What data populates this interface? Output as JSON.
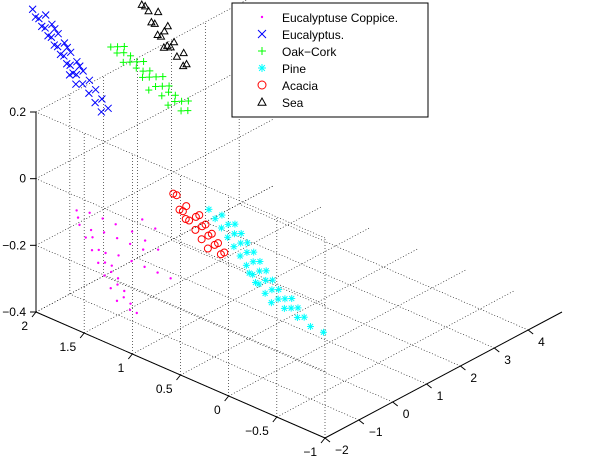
{
  "chart_data": {
    "type": "scatter3d",
    "title": "",
    "xlabel": "",
    "ylabel": "",
    "zlabel": "",
    "xlim": [
      -2,
      5
    ],
    "ylim": [
      -1,
      2
    ],
    "zlim": [
      -0.4,
      0.2
    ],
    "x_ticks": [
      "−2",
      "−1",
      "0",
      "1",
      "2",
      "3",
      "4"
    ],
    "y_ticks": [
      "−1",
      "−0.5",
      "0",
      "0.5",
      "1",
      "1.5",
      "2"
    ],
    "z_ticks": [
      "−0.4",
      "−0.2",
      "0",
      "0.2"
    ],
    "grid": true,
    "legend_position": "top-center",
    "series": [
      {
        "name": "Eucalyptuse Coppice.",
        "marker": "dot",
        "color": "#ff00ff",
        "points": [
          [
            -1.6,
            1.3,
            -0.3
          ],
          [
            -1.5,
            1.4,
            -0.28
          ],
          [
            -1.4,
            1.5,
            -0.26
          ],
          [
            -1.3,
            1.6,
            -0.24
          ],
          [
            -1.2,
            1.7,
            -0.22
          ],
          [
            -1.1,
            1.8,
            -0.2
          ],
          [
            -1.0,
            1.9,
            -0.18
          ],
          [
            -0.9,
            1.95,
            -0.17
          ],
          [
            -0.8,
            2.0,
            -0.16
          ],
          [
            -0.7,
            1.9,
            -0.16
          ],
          [
            -0.6,
            1.8,
            -0.17
          ],
          [
            -0.5,
            1.7,
            -0.18
          ],
          [
            -1.5,
            1.2,
            -0.32
          ],
          [
            -1.4,
            1.3,
            -0.3
          ],
          [
            -1.3,
            1.4,
            -0.28
          ],
          [
            -1.2,
            1.5,
            -0.26
          ],
          [
            -1.1,
            1.6,
            -0.25
          ],
          [
            -1.0,
            1.7,
            -0.23
          ],
          [
            -0.9,
            1.8,
            -0.21
          ],
          [
            -0.8,
            1.85,
            -0.2
          ],
          [
            -0.7,
            1.75,
            -0.2
          ],
          [
            -0.6,
            1.65,
            -0.21
          ],
          [
            -0.5,
            1.55,
            -0.22
          ],
          [
            -0.4,
            1.45,
            -0.23
          ],
          [
            -1.3,
            1.2,
            -0.34
          ],
          [
            -1.2,
            1.3,
            -0.33
          ],
          [
            -1.1,
            1.4,
            -0.31
          ],
          [
            -1.0,
            1.5,
            -0.29
          ],
          [
            -0.9,
            1.6,
            -0.27
          ],
          [
            -0.8,
            1.7,
            -0.25
          ],
          [
            -0.7,
            1.6,
            -0.25
          ],
          [
            -0.6,
            1.5,
            -0.26
          ],
          [
            -0.5,
            1.4,
            -0.27
          ],
          [
            -0.4,
            1.3,
            -0.28
          ],
          [
            -0.3,
            1.2,
            -0.29
          ],
          [
            -0.3,
            1.6,
            -0.2
          ],
          [
            -0.2,
            1.5,
            -0.22
          ],
          [
            -0.1,
            1.4,
            -0.24
          ],
          [
            0.0,
            1.6,
            -0.18
          ],
          [
            0.1,
            1.5,
            -0.2
          ]
        ]
      },
      {
        "name": "Eucalyptus.",
        "marker": "x",
        "color": "#0000ff",
        "points": [
          [
            0.6,
            2.3,
            0.05
          ],
          [
            0.7,
            2.4,
            0.06
          ],
          [
            0.8,
            2.5,
            0.07
          ],
          [
            0.9,
            2.6,
            0.08
          ],
          [
            1.0,
            2.7,
            0.09
          ],
          [
            1.1,
            2.8,
            0.1
          ],
          [
            1.2,
            2.9,
            0.11
          ],
          [
            1.3,
            3.0,
            0.12
          ],
          [
            1.4,
            3.1,
            0.13
          ],
          [
            1.5,
            3.2,
            0.14
          ],
          [
            0.7,
            2.2,
            0.04
          ],
          [
            0.8,
            2.3,
            0.05
          ],
          [
            0.9,
            2.4,
            0.06
          ],
          [
            1.0,
            2.5,
            0.07
          ],
          [
            1.1,
            2.6,
            0.08
          ],
          [
            1.2,
            2.7,
            0.09
          ],
          [
            1.3,
            2.8,
            0.1
          ],
          [
            1.4,
            2.9,
            0.11
          ],
          [
            1.5,
            3.0,
            0.12
          ],
          [
            1.6,
            3.1,
            0.13
          ],
          [
            0.8,
            2.6,
            0.09
          ],
          [
            0.9,
            2.7,
            0.1
          ],
          [
            1.0,
            2.8,
            0.11
          ],
          [
            1.1,
            2.9,
            0.12
          ],
          [
            1.2,
            3.0,
            0.13
          ],
          [
            1.3,
            3.1,
            0.14
          ],
          [
            1.4,
            3.2,
            0.15
          ],
          [
            0.6,
            2.5,
            0.08
          ],
          [
            0.7,
            2.6,
            0.09
          ],
          [
            1.7,
            3.2,
            0.14
          ],
          [
            1.6,
            3.3,
            0.15
          ],
          [
            0.5,
            2.2,
            0.04
          ],
          [
            1.0,
            2.6,
            0.1
          ],
          [
            1.2,
            2.8,
            0.12
          ],
          [
            1.4,
            3.0,
            0.14
          ]
        ]
      },
      {
        "name": "Oak−Cork",
        "marker": "plus",
        "color": "#00ff00",
        "points": [
          [
            2.0,
            1.9,
            0.0
          ],
          [
            2.1,
            2.0,
            0.01
          ],
          [
            2.2,
            2.1,
            0.02
          ],
          [
            2.3,
            2.2,
            0.02
          ],
          [
            2.4,
            2.3,
            0.03
          ],
          [
            2.5,
            2.4,
            0.03
          ],
          [
            2.0,
            2.1,
            0.02
          ],
          [
            2.1,
            2.2,
            0.03
          ],
          [
            2.2,
            2.3,
            0.04
          ],
          [
            2.3,
            2.4,
            0.04
          ],
          [
            2.4,
            2.5,
            0.05
          ],
          [
            2.5,
            2.6,
            0.05
          ],
          [
            1.9,
            2.0,
            0.01
          ],
          [
            2.0,
            2.3,
            0.05
          ],
          [
            2.1,
            2.4,
            0.06
          ],
          [
            2.2,
            2.5,
            0.06
          ],
          [
            2.3,
            2.6,
            0.07
          ],
          [
            2.4,
            2.7,
            0.07
          ],
          [
            2.6,
            2.5,
            0.04
          ],
          [
            2.6,
            2.7,
            0.06
          ],
          [
            2.2,
            1.9,
            -0.01
          ],
          [
            2.3,
            2.0,
            0.0
          ],
          [
            2.4,
            2.1,
            0.0
          ],
          [
            2.5,
            2.2,
            0.01
          ],
          [
            2.1,
            2.6,
            0.08
          ],
          [
            2.2,
            2.7,
            0.08
          ],
          [
            2.0,
            2.5,
            0.07
          ],
          [
            1.9,
            2.2,
            0.03
          ],
          [
            2.5,
            2.0,
            -0.01
          ],
          [
            2.6,
            2.3,
            0.02
          ]
        ]
      },
      {
        "name": "Pine",
        "marker": "star",
        "color": "#00ffff",
        "points": [
          [
            0.4,
            0.4,
            -0.3
          ],
          [
            0.5,
            0.5,
            -0.29
          ],
          [
            0.6,
            0.6,
            -0.28
          ],
          [
            0.7,
            0.7,
            -0.27
          ],
          [
            0.8,
            0.8,
            -0.26
          ],
          [
            0.9,
            0.9,
            -0.25
          ],
          [
            1.0,
            1.0,
            -0.24
          ],
          [
            1.1,
            1.1,
            -0.23
          ],
          [
            1.2,
            1.2,
            -0.22
          ],
          [
            1.3,
            1.3,
            -0.21
          ],
          [
            0.5,
            0.3,
            -0.31
          ],
          [
            0.6,
            0.4,
            -0.3
          ],
          [
            0.7,
            0.5,
            -0.29
          ],
          [
            0.8,
            0.6,
            -0.28
          ],
          [
            0.9,
            0.7,
            -0.27
          ],
          [
            1.0,
            0.8,
            -0.26
          ],
          [
            1.1,
            0.9,
            -0.25
          ],
          [
            1.2,
            1.0,
            -0.24
          ],
          [
            1.3,
            1.1,
            -0.23
          ],
          [
            1.4,
            1.2,
            -0.22
          ],
          [
            0.6,
            0.2,
            -0.33
          ],
          [
            0.7,
            0.3,
            -0.32
          ],
          [
            0.8,
            0.4,
            -0.31
          ],
          [
            0.9,
            0.5,
            -0.3
          ],
          [
            1.0,
            0.6,
            -0.29
          ],
          [
            1.1,
            0.7,
            -0.28
          ],
          [
            1.2,
            0.8,
            -0.27
          ],
          [
            1.3,
            0.9,
            -0.26
          ],
          [
            1.4,
            1.0,
            -0.25
          ],
          [
            1.5,
            1.1,
            -0.24
          ],
          [
            0.7,
            0.1,
            -0.35
          ],
          [
            0.8,
            0.2,
            -0.34
          ],
          [
            0.9,
            0.3,
            -0.33
          ],
          [
            1.0,
            0.4,
            -0.32
          ],
          [
            1.6,
            1.2,
            -0.23
          ],
          [
            1.5,
            1.3,
            -0.21
          ],
          [
            1.4,
            1.4,
            -0.2
          ],
          [
            0.5,
            0.6,
            -0.27
          ],
          [
            0.6,
            0.7,
            -0.26
          ],
          [
            0.8,
            0.0,
            -0.36
          ]
        ]
      },
      {
        "name": "Acacia",
        "marker": "circle",
        "color": "#ff0000",
        "points": [
          [
            0.9,
            1.3,
            -0.25
          ],
          [
            1.0,
            1.4,
            -0.24
          ],
          [
            1.1,
            1.5,
            -0.23
          ],
          [
            1.2,
            1.6,
            -0.22
          ],
          [
            1.0,
            1.2,
            -0.26
          ],
          [
            1.1,
            1.3,
            -0.25
          ],
          [
            1.2,
            1.4,
            -0.24
          ],
          [
            1.3,
            1.5,
            -0.23
          ],
          [
            0.9,
            1.1,
            -0.27
          ],
          [
            1.0,
            1.1,
            -0.27
          ],
          [
            1.1,
            1.2,
            -0.26
          ],
          [
            1.2,
            1.3,
            -0.25
          ],
          [
            1.3,
            1.4,
            -0.24
          ],
          [
            1.4,
            1.5,
            -0.23
          ],
          [
            1.2,
            1.7,
            -0.18
          ],
          [
            1.3,
            1.7,
            -0.19
          ],
          [
            0.8,
            1.2,
            -0.26
          ],
          [
            1.1,
            1.6,
            -0.21
          ],
          [
            1.0,
            1.5,
            -0.22
          ],
          [
            1.3,
            1.6,
            -0.21
          ]
        ]
      },
      {
        "name": "Sea",
        "marker": "triangle",
        "color": "#000000",
        "points": [
          [
            3.4,
            2.6,
            0.06
          ],
          [
            3.5,
            2.7,
            0.08
          ],
          [
            3.6,
            2.8,
            0.1
          ],
          [
            3.5,
            2.8,
            0.12
          ],
          [
            3.6,
            2.9,
            0.14
          ],
          [
            3.5,
            2.9,
            0.16
          ],
          [
            3.6,
            3.0,
            0.18
          ],
          [
            3.5,
            2.5,
            0.05
          ],
          [
            3.4,
            2.5,
            0.04
          ],
          [
            3.3,
            2.4,
            0.03
          ],
          [
            3.2,
            2.3,
            0.02
          ],
          [
            3.3,
            2.6,
            0.07
          ],
          [
            3.4,
            2.7,
            0.09
          ],
          [
            3.5,
            3.0,
            0.19
          ],
          [
            3.6,
            3.1,
            0.21
          ],
          [
            3.4,
            2.8,
            0.13
          ],
          [
            3.5,
            2.6,
            0.07
          ],
          [
            3.3,
            2.3,
            0.02
          ],
          [
            3.2,
            2.5,
            0.05
          ],
          [
            3.6,
            2.7,
            0.11
          ],
          [
            3.5,
            3.1,
            0.22
          ],
          [
            3.4,
            2.9,
            0.15
          ],
          [
            3.6,
            2.6,
            0.08
          ],
          [
            3.3,
            2.5,
            0.05
          ],
          [
            3.5,
            2.4,
            0.03
          ]
        ]
      }
    ]
  }
}
